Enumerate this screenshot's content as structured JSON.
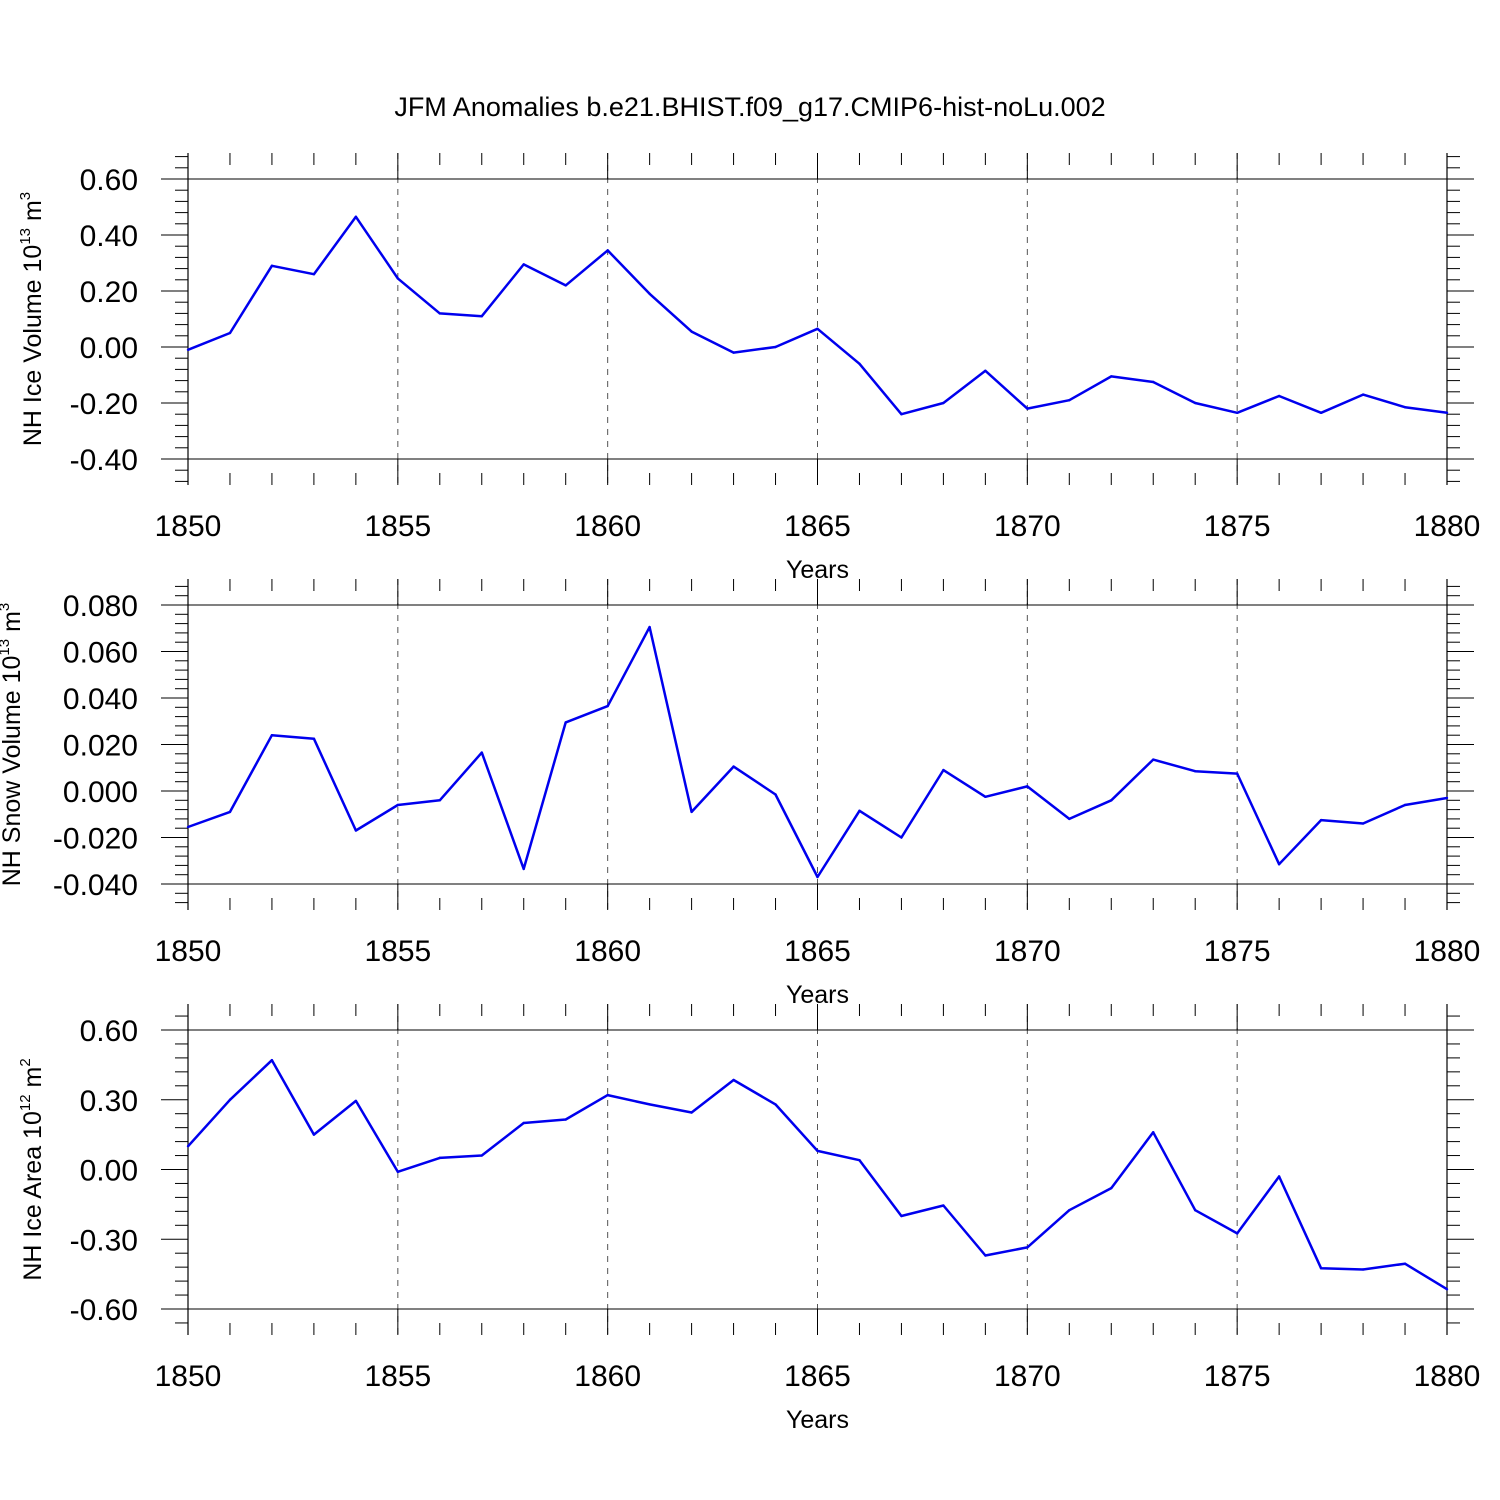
{
  "title": "JFM Anomalies b.e21.BHIST.f09_g17.CMIP6-hist-noLu.002",
  "colors": {
    "line": "#0000ee",
    "grid": "#555555",
    "axis": "#000000"
  },
  "chart_data": [
    {
      "type": "line",
      "xlabel": "Years",
      "ylabel_parts": {
        "base": "NH Ice Volume 10",
        "exp1": "13",
        "mid": " m",
        "exp2": "3"
      },
      "xlim": [
        1850,
        1880
      ],
      "ylim": [
        -0.4,
        0.6
      ],
      "x_ticks": [
        1850,
        1855,
        1860,
        1865,
        1870,
        1875,
        1880
      ],
      "x_tick_labels": [
        "1850",
        "1855",
        "1860",
        "1865",
        "1870",
        "1875",
        "1880"
      ],
      "y_ticks": [
        -0.4,
        -0.2,
        0.0,
        0.2,
        0.4,
        0.6
      ],
      "y_tick_labels": [
        "-0.40",
        "-0.20",
        "0.00",
        "0.20",
        "0.40",
        "0.60"
      ],
      "x": [
        1850,
        1851,
        1852,
        1853,
        1854,
        1855,
        1856,
        1857,
        1858,
        1859,
        1860,
        1861,
        1862,
        1863,
        1864,
        1865,
        1866,
        1867,
        1868,
        1869,
        1870,
        1871,
        1872,
        1873,
        1874,
        1875,
        1876,
        1877,
        1878,
        1879,
        1880
      ],
      "values": [
        -0.01,
        0.05,
        0.29,
        0.26,
        0.465,
        0.245,
        0.12,
        0.11,
        0.295,
        0.22,
        0.345,
        0.19,
        0.055,
        -0.02,
        0.0,
        0.065,
        -0.06,
        -0.24,
        -0.2,
        -0.085,
        -0.22,
        -0.19,
        -0.105,
        -0.125,
        -0.2,
        -0.235,
        -0.175,
        -0.235,
        -0.17,
        -0.215,
        -0.235
      ]
    },
    {
      "type": "line",
      "xlabel": "Years",
      "ylabel_parts": {
        "base": "NH Snow Volume 10",
        "exp1": "13",
        "mid": " m",
        "exp2": "3"
      },
      "xlim": [
        1850,
        1880
      ],
      "ylim": [
        -0.04,
        0.08
      ],
      "x_ticks": [
        1850,
        1855,
        1860,
        1865,
        1870,
        1875,
        1880
      ],
      "x_tick_labels": [
        "1850",
        "1855",
        "1860",
        "1865",
        "1870",
        "1875",
        "1880"
      ],
      "y_ticks": [
        -0.04,
        -0.02,
        0.0,
        0.02,
        0.04,
        0.06,
        0.08
      ],
      "y_tick_labels": [
        "-0.040",
        "-0.020",
        "0.000",
        "0.020",
        "0.040",
        "0.060",
        "0.080"
      ],
      "x": [
        1850,
        1851,
        1852,
        1853,
        1854,
        1855,
        1856,
        1857,
        1858,
        1859,
        1860,
        1861,
        1862,
        1863,
        1864,
        1865,
        1866,
        1867,
        1868,
        1869,
        1870,
        1871,
        1872,
        1873,
        1874,
        1875,
        1876,
        1877,
        1878,
        1879,
        1880
      ],
      "values": [
        -0.0155,
        -0.009,
        0.024,
        0.0225,
        -0.017,
        -0.006,
        -0.004,
        0.0165,
        -0.0335,
        0.0295,
        0.0365,
        0.0705,
        -0.009,
        0.0105,
        -0.0015,
        -0.037,
        -0.0085,
        -0.02,
        0.009,
        -0.0025,
        0.002,
        -0.012,
        -0.004,
        0.0135,
        0.0085,
        0.0075,
        -0.0315,
        -0.0125,
        -0.014,
        -0.006,
        -0.003
      ]
    },
    {
      "type": "line",
      "xlabel": "Years",
      "ylabel_parts": {
        "base": "NH Ice Area 10",
        "exp1": "12",
        "mid": " m",
        "exp2": "2"
      },
      "xlim": [
        1850,
        1880
      ],
      "ylim": [
        -0.6,
        0.6
      ],
      "x_ticks": [
        1850,
        1855,
        1860,
        1865,
        1870,
        1875,
        1880
      ],
      "x_tick_labels": [
        "1850",
        "1855",
        "1860",
        "1865",
        "1870",
        "1875",
        "1880"
      ],
      "y_ticks": [
        -0.6,
        -0.3,
        0.0,
        0.3,
        0.6
      ],
      "y_tick_labels": [
        "-0.60",
        "-0.30",
        "0.00",
        "0.30",
        "0.60"
      ],
      "x": [
        1850,
        1851,
        1852,
        1853,
        1854,
        1855,
        1856,
        1857,
        1858,
        1859,
        1860,
        1861,
        1862,
        1863,
        1864,
        1865,
        1866,
        1867,
        1868,
        1869,
        1870,
        1871,
        1872,
        1873,
        1874,
        1875,
        1876,
        1877,
        1878,
        1879,
        1880
      ],
      "values": [
        0.1,
        0.3,
        0.47,
        0.15,
        0.295,
        -0.01,
        0.05,
        0.06,
        0.2,
        0.215,
        0.32,
        0.28,
        0.245,
        0.385,
        0.28,
        0.08,
        0.04,
        -0.2,
        -0.155,
        -0.37,
        -0.335,
        -0.175,
        -0.08,
        0.16,
        -0.175,
        -0.275,
        -0.03,
        -0.425,
        -0.43,
        -0.405,
        -0.515
      ]
    }
  ]
}
